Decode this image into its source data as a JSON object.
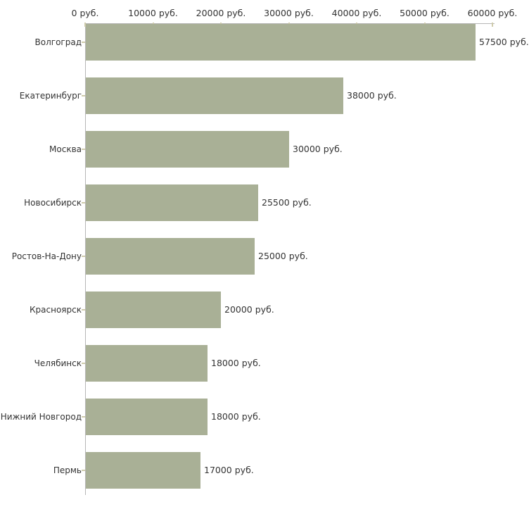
{
  "chart_data": {
    "type": "bar",
    "orientation": "horizontal",
    "title": "",
    "xlabel": "",
    "ylabel": "",
    "unit": "руб.",
    "grid": "off",
    "legend": "none",
    "xlim": [
      0,
      60000
    ],
    "categories": [
      "Волгоград",
      "Екатеринбург",
      "Москва",
      "Новосибирск",
      "Ростов-На-Дону",
      "Красноярск",
      "Челябинск",
      "Нижний Новгород",
      "Пермь"
    ],
    "values": [
      57500,
      38000,
      30000,
      25500,
      25000,
      20000,
      18000,
      18000,
      17000
    ],
    "value_labels": [
      "57500 руб.",
      "38000 руб.",
      "30000 руб.",
      "25500 руб.",
      "25000 руб.",
      "20000 руб.",
      "18000 руб.",
      "18000 руб.",
      "17000 руб."
    ],
    "x_ticks": [
      {
        "value": 0,
        "label": "0 руб."
      },
      {
        "value": 10000,
        "label": "10000 руб."
      },
      {
        "value": 20000,
        "label": "20000 руб."
      },
      {
        "value": 30000,
        "label": "30000 руб."
      },
      {
        "value": 40000,
        "label": "40000 руб."
      },
      {
        "value": 50000,
        "label": "50000 руб."
      },
      {
        "value": 60000,
        "label": "60000 руб."
      }
    ],
    "colors": {
      "bar_fill": "#a9b096",
      "axis_line": "#b6b6b6",
      "tick_mark": "#cfcbab",
      "label_text": "#333333",
      "background": "#ffffff"
    }
  }
}
